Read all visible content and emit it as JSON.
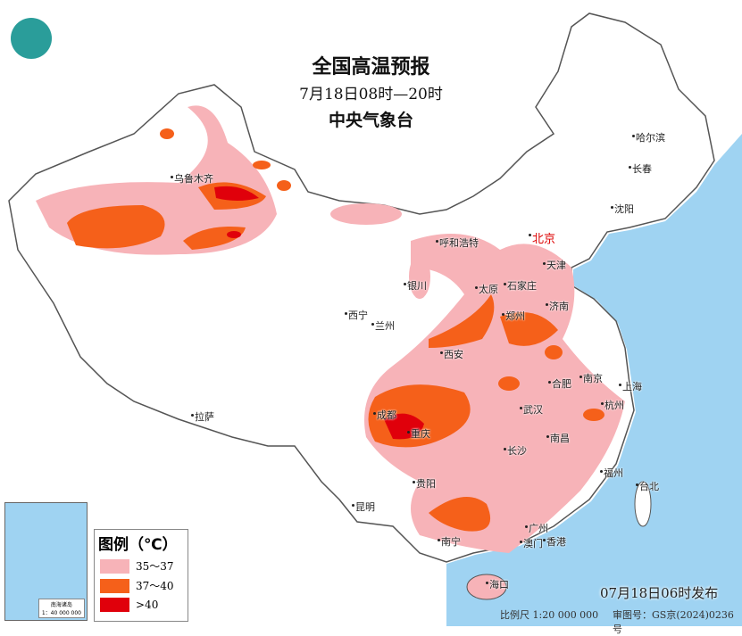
{
  "header": {
    "title": "全国高温预报",
    "valid_time": "7月18日08时—20时",
    "issuer": "中央气象台"
  },
  "legend": {
    "title": "图例（℃）",
    "items": [
      {
        "label": "35～37",
        "color": "#f7b3b8"
      },
      {
        "label": "37～40",
        "color": "#f5601a"
      },
      {
        "label": ">40",
        "color": "#e0000b"
      }
    ]
  },
  "inset": {
    "label": "南海诸岛",
    "scale": "1：40 000 000"
  },
  "cities": [
    {
      "name": "乌鲁木齐"
    },
    {
      "name": "哈尔滨"
    },
    {
      "name": "长春"
    },
    {
      "name": "沈阳"
    },
    {
      "name": "呼和浩特"
    },
    {
      "name": "北京"
    },
    {
      "name": "天津"
    },
    {
      "name": "石家庄"
    },
    {
      "name": "太原"
    },
    {
      "name": "银川"
    },
    {
      "name": "济南"
    },
    {
      "name": "西宁"
    },
    {
      "name": "兰州"
    },
    {
      "name": "郑州"
    },
    {
      "name": "西安"
    },
    {
      "name": "合肥"
    },
    {
      "name": "南京"
    },
    {
      "name": "上海"
    },
    {
      "name": "成都"
    },
    {
      "name": "武汉"
    },
    {
      "name": "杭州"
    },
    {
      "name": "重庆"
    },
    {
      "name": "南昌"
    },
    {
      "name": "长沙"
    },
    {
      "name": "拉萨"
    },
    {
      "name": "福州"
    },
    {
      "name": "台北"
    },
    {
      "name": "贵阳"
    },
    {
      "name": "昆明"
    },
    {
      "name": "广州"
    },
    {
      "name": "南宁"
    },
    {
      "name": "澳门"
    },
    {
      "name": "香港"
    },
    {
      "name": "海口"
    }
  ],
  "footer": {
    "issued": "07月18日06时发布",
    "scale": "比例尺  1:20 000 000",
    "map_no": "审图号：GS京(2024)0236号"
  },
  "colors": {
    "ocean": "#9fd3f2",
    "land": "#ffffff",
    "heat_35_37": "#f7b3b8",
    "heat_37_40": "#f5601a",
    "heat_40": "#e0000b"
  }
}
